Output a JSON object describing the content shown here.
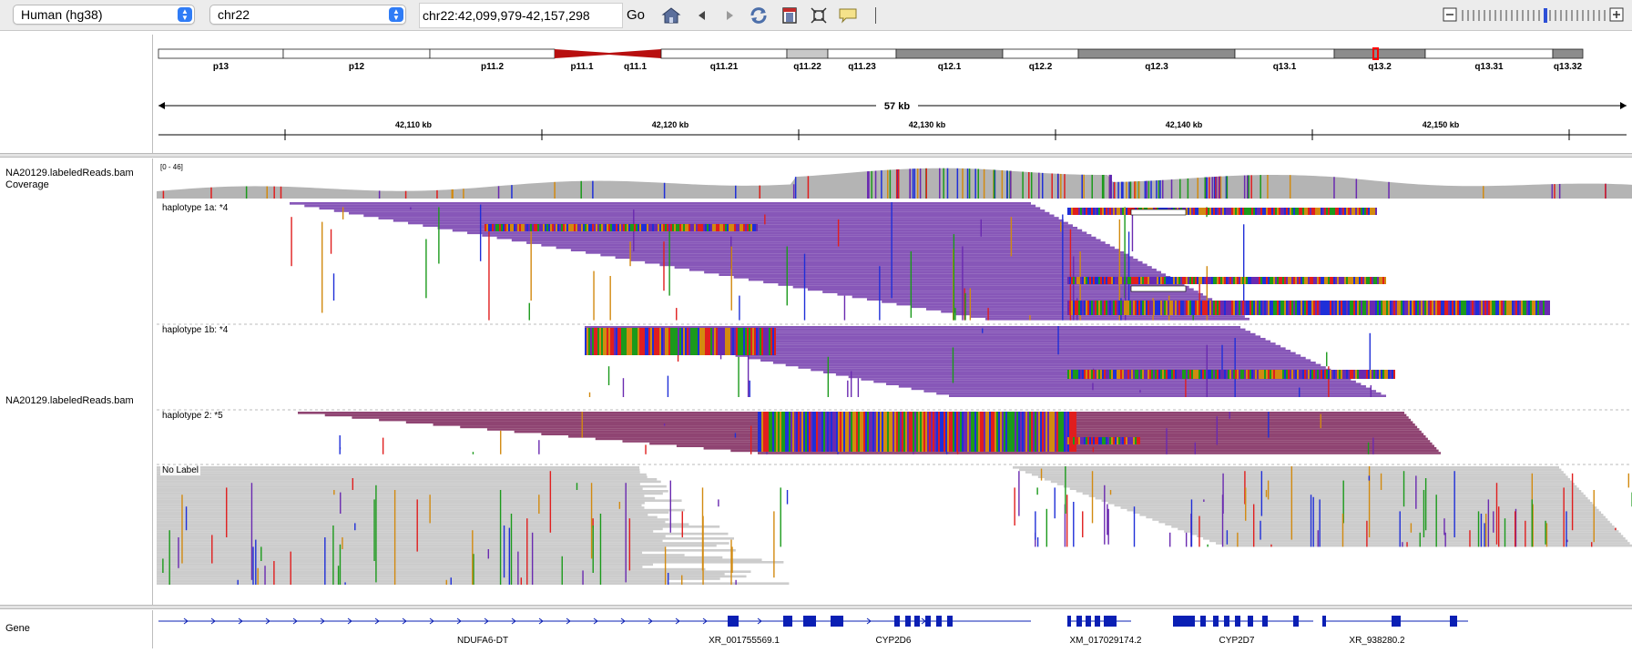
{
  "toolbar": {
    "genome": "Human (hg38)",
    "chromosome": "chr22",
    "locus": "chr22:42,099,979-42,157,298",
    "go_label": "Go",
    "icons": [
      "home-icon",
      "back-icon",
      "forward-icon",
      "refresh-icon",
      "roi-icon",
      "resize-icon",
      "popup-info-icon"
    ]
  },
  "ideogram": {
    "bands": [
      {
        "label": "p13",
        "stain": "gneg"
      },
      {
        "label": "p12",
        "stain": "gneg"
      },
      {
        "label": "p11.2",
        "stain": "gneg"
      },
      {
        "label": "p11.1",
        "stain": "acen"
      },
      {
        "label": "q11.1",
        "stain": "acen"
      },
      {
        "label": "q11.21",
        "stain": "gneg"
      },
      {
        "label": "q11.22",
        "stain": "gpos25"
      },
      {
        "label": "q11.23",
        "stain": "gneg"
      },
      {
        "label": "q12.1",
        "stain": "gpos50"
      },
      {
        "label": "q12.2",
        "stain": "gneg"
      },
      {
        "label": "q12.3",
        "stain": "gpos50"
      },
      {
        "label": "q13.1",
        "stain": "gneg"
      },
      {
        "label": "q13.2",
        "stain": "gpos50"
      },
      {
        "label": "q13.31",
        "stain": "gneg"
      },
      {
        "label": "q13.32",
        "stain": "gpos50"
      }
    ]
  },
  "ruler": {
    "span_label": "57 kb",
    "ticks": [
      "42,110 kb",
      "42,120 kb",
      "42,130 kb",
      "42,140 kb",
      "42,150 kb"
    ]
  },
  "tracks": {
    "coverage_label": "NA20129.labeledReads.bam Coverage",
    "coverage_range": "[0 - 46]",
    "alignment_label": "NA20129.labeledReads.bam",
    "groups": [
      "haplotype 1a: *4",
      "haplotype 1b: *4",
      "haplotype 2: *5",
      "No Label"
    ],
    "gene_track_label": "Gene",
    "genes": [
      "NDUFA6-DT",
      "XR_001755569.1",
      "CYP2D6",
      "XM_017029174.2",
      "CYP2D7",
      "XR_938280.2"
    ]
  },
  "colors": {
    "hap1": "#8757b8",
    "hap2": "#8f4472",
    "no_label": "#cccccc",
    "coverage": "#b4b4b4",
    "gene": "#0a1fb4",
    "centromere": "#b80f0f"
  }
}
